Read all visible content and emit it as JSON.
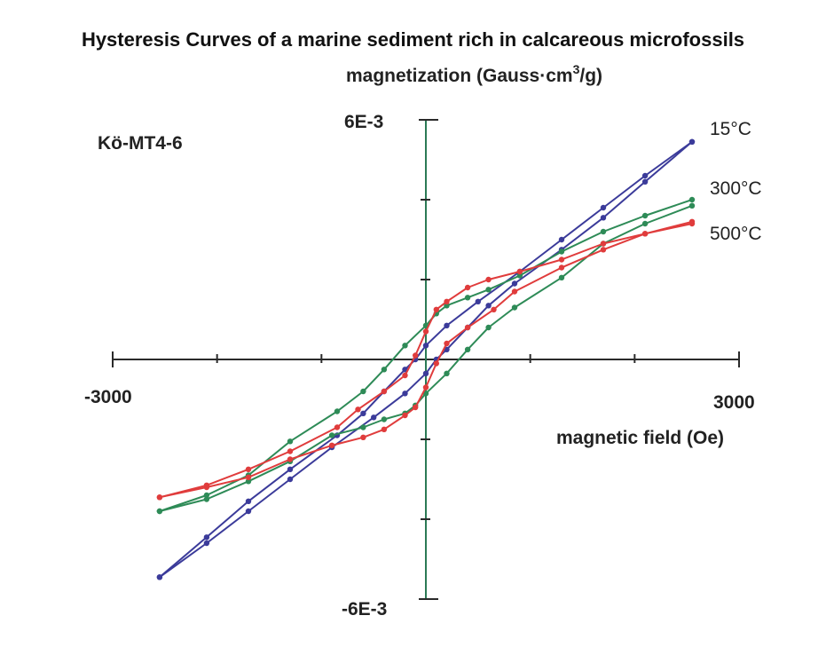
{
  "chart_data": {
    "type": "line",
    "title": "Hysteresis Curves of a  marine sediment rich in calcareous microfossils",
    "ylabel": "magnetization (Gauss·cm",
    "ylabel_sup": "3",
    "ylabel_tail": "/g)",
    "xlabel": "magnetic field (Oe)",
    "annotation": "Kö-MT4-6",
    "x_tick_labels": {
      "min": "-3000",
      "max": "3000"
    },
    "y_tick_labels": {
      "max": "6E-3",
      "min": "-6E-3"
    },
    "xlim": [
      -3000,
      3000
    ],
    "ylim": [
      -0.006,
      0.006
    ],
    "x_ticks": [
      -3000,
      -2000,
      -1000,
      0,
      1000,
      2000,
      3000
    ],
    "y_ticks": [
      -0.006,
      -0.004,
      -0.002,
      0,
      0.002,
      0.004,
      0.006
    ],
    "grid": false,
    "colors": {
      "axis": "#2a2a2a",
      "y_axis": "#2b7a55"
    },
    "series": [
      {
        "name": "15°C",
        "color": "#3b3b9a",
        "branches": [
          {
            "x": [
              2550,
              2100,
              1700,
              1300,
              900,
              500,
              200,
              0,
              -100,
              -200,
              -400,
              -600,
              -850,
              -1300,
              -1700,
              -2100,
              -2550
            ],
            "y": [
              0.00545,
              0.0046,
              0.0038,
              0.003,
              0.0022,
              0.00145,
              0.00085,
              0.00035,
              0.0,
              -0.00025,
              -0.0008,
              -0.00135,
              -0.0019,
              -0.00275,
              -0.00355,
              -0.00445,
              -0.00545
            ]
          },
          {
            "x": [
              -2550,
              -2100,
              -1700,
              -1300,
              -900,
              -500,
              -200,
              0,
              100,
              200,
              400,
              600,
              850,
              1300,
              1700,
              2100,
              2550
            ],
            "y": [
              -0.00545,
              -0.0046,
              -0.0038,
              -0.003,
              -0.0022,
              -0.00145,
              -0.00085,
              -0.00035,
              0.0,
              0.00025,
              0.0008,
              0.00135,
              0.0019,
              0.00275,
              0.00355,
              0.00445,
              0.00545
            ]
          }
        ]
      },
      {
        "name": "300°C",
        "color": "#2e8b57",
        "branches": [
          {
            "x": [
              2550,
              2100,
              1700,
              1300,
              900,
              600,
              400,
              200,
              100,
              0,
              -200,
              -400,
              -600,
              -850,
              -1300,
              -1700,
              -2100,
              -2550
            ],
            "y": [
              0.004,
              0.0036,
              0.0032,
              0.0027,
              0.0021,
              0.00175,
              0.00155,
              0.00135,
              0.00115,
              0.00085,
              0.00035,
              -0.00025,
              -0.0008,
              -0.0013,
              -0.00205,
              -0.0029,
              -0.0034,
              -0.0038
            ]
          },
          {
            "x": [
              -2550,
              -2100,
              -1700,
              -1300,
              -900,
              -600,
              -400,
              -200,
              -100,
              0,
              200,
              400,
              600,
              850,
              1300,
              1700,
              2100,
              2550
            ],
            "y": [
              -0.0038,
              -0.0035,
              -0.00305,
              -0.00255,
              -0.0019,
              -0.0017,
              -0.0015,
              -0.00135,
              -0.00115,
              -0.00085,
              -0.00035,
              0.00025,
              0.0008,
              0.0013,
              0.00205,
              0.0029,
              0.0034,
              0.00385
            ]
          }
        ]
      },
      {
        "name": "500°C",
        "color": "#e03c3c",
        "branches": [
          {
            "x": [
              2550,
              2100,
              1700,
              1300,
              900,
              600,
              400,
              200,
              100,
              0,
              -100,
              -200,
              -400,
              -650,
              -850,
              -1300,
              -1700,
              -2100,
              -2550
            ],
            "y": [
              0.0034,
              0.00315,
              0.0029,
              0.0025,
              0.0022,
              0.002,
              0.0018,
              0.00145,
              0.00125,
              0.0007,
              0.0001,
              -0.0004,
              -0.0008,
              -0.00125,
              -0.0017,
              -0.0023,
              -0.00275,
              -0.00315,
              -0.00345
            ]
          },
          {
            "x": [
              -2550,
              -2100,
              -1700,
              -1300,
              -900,
              -600,
              -400,
              -200,
              -100,
              0,
              100,
              200,
              400,
              650,
              850,
              1300,
              1700,
              2100,
              2550
            ],
            "y": [
              -0.00345,
              -0.0032,
              -0.00295,
              -0.0025,
              -0.00215,
              -0.00195,
              -0.00175,
              -0.0014,
              -0.0012,
              -0.0007,
              -0.0001,
              0.0004,
              0.0008,
              0.00125,
              0.0017,
              0.0023,
              0.00275,
              0.00315,
              0.00345
            ]
          }
        ]
      }
    ]
  }
}
